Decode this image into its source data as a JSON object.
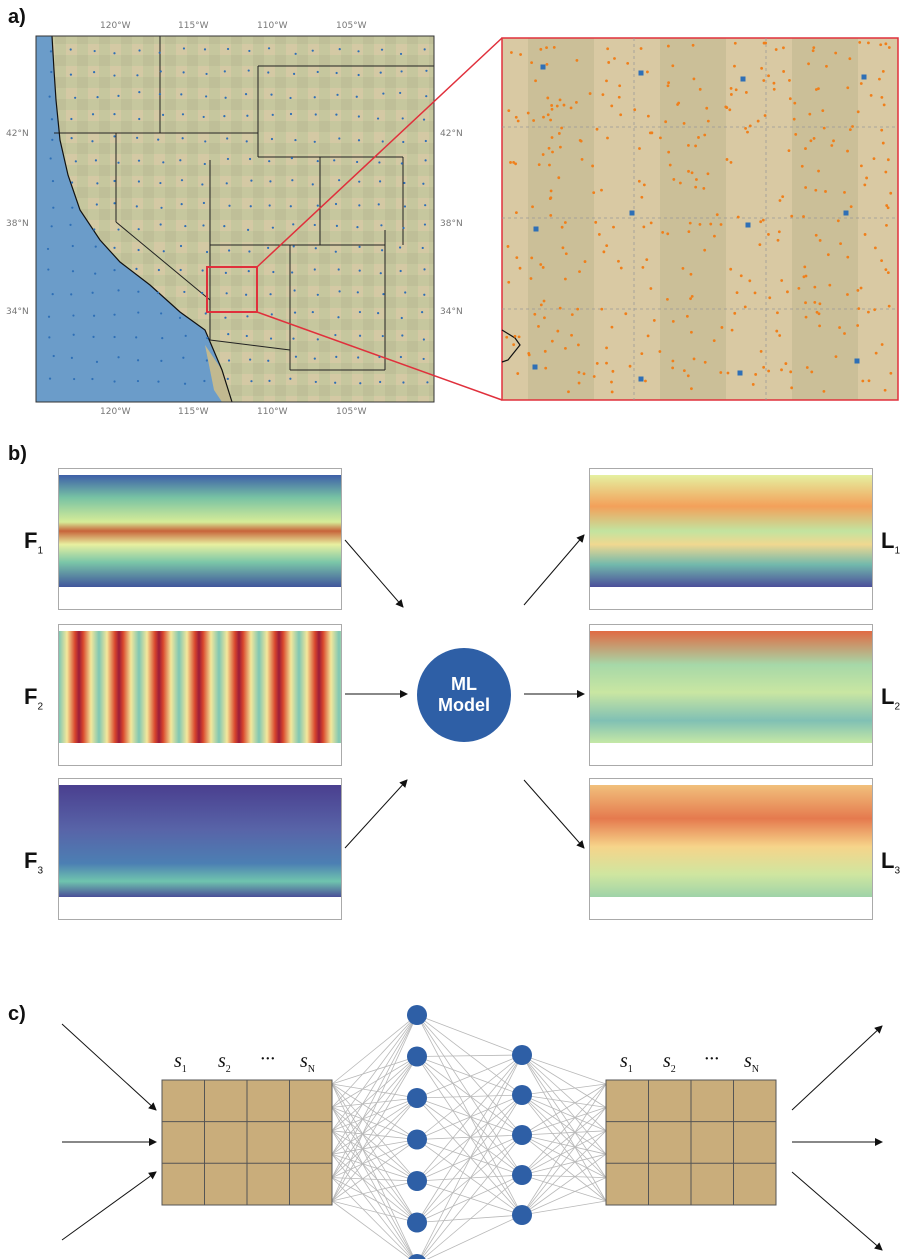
{
  "panels": {
    "a": {
      "label": "a)",
      "lon_ticks": [
        "120°W",
        "115°W",
        "110°W",
        "105°W"
      ],
      "lat_ticks": [
        "42°N",
        "38°N",
        "34°N"
      ]
    },
    "b": {
      "label": "b)",
      "inputs": [
        {
          "letter": "F",
          "sub": "1"
        },
        {
          "letter": "F",
          "sub": "2"
        },
        {
          "letter": "F",
          "sub": "3"
        }
      ],
      "outputs": [
        {
          "letter": "L",
          "sub": "1"
        },
        {
          "letter": "L",
          "sub": "2"
        },
        {
          "letter": "L",
          "sub": "3"
        }
      ],
      "model_line1": "ML",
      "model_line2": "Model"
    },
    "c": {
      "label": "c)",
      "left_grid": {
        "s1": "s",
        "s1_sub": "1",
        "s2": "s",
        "s2_sub": "2",
        "dots": "···",
        "sN": "s",
        "sN_sub": "N"
      },
      "right_grid": {
        "s1": "s",
        "s1_sub": "1",
        "s2": "s",
        "s2_sub": "2",
        "dots": "···",
        "sN": "s",
        "sN_sub": "N"
      },
      "hidden_layer_1_nodes": 7,
      "hidden_layer_2_nodes": 5
    }
  },
  "colors": {
    "grid_fill": "#c9ad7b",
    "node_blue": "#2e5fa6",
    "zoom_red": "#e0303c",
    "dot_blue": "#2e6fb6",
    "dot_orange": "#f07f1a"
  }
}
